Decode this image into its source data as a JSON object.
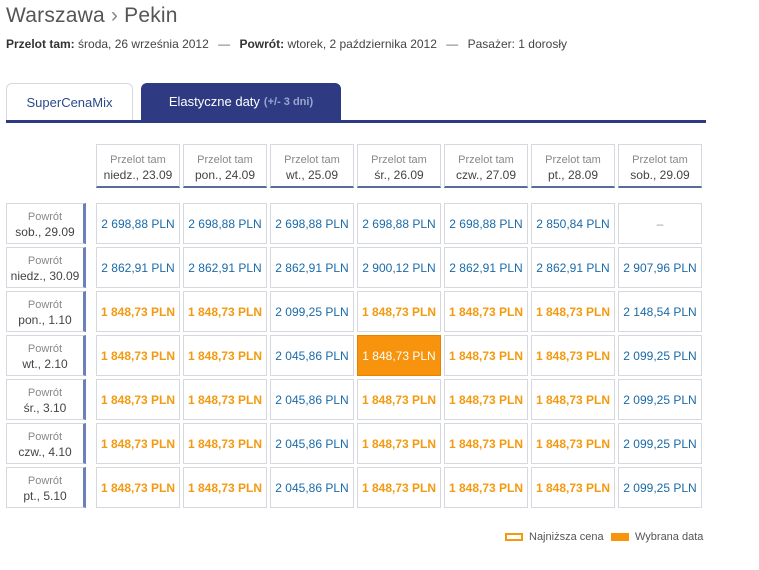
{
  "header": {
    "origin": "Warszawa",
    "separator": "›",
    "destination": "Pekin",
    "outbound_label": "Przelot tam:",
    "outbound_date": "środa, 26 września 2012",
    "return_label": "Powrót:",
    "return_date": "wtorek, 2 października 2012",
    "passenger_label": "Pasażer:",
    "passenger_value": "1 dorosły",
    "dash": "—"
  },
  "tabs": {
    "super_label": "SuperCenaMix",
    "elastic_label": "Elastyczne daty",
    "elastic_hint": "(+/- 3 dni)"
  },
  "columns_label": "Przelot tam",
  "rows_label": "Powrót",
  "columns": [
    "niedz., 23.09",
    "pon., 24.09",
    "wt., 25.09",
    "śr., 26.09",
    "czw., 27.09",
    "pt., 28.09",
    "sob., 29.09"
  ],
  "rows": [
    "sob., 29.09",
    "niedz., 30.09",
    "pon., 1.10",
    "wt., 2.10",
    "śr., 3.10",
    "czw., 4.10",
    "pt., 5.10"
  ],
  "prices": [
    [
      "2 698,88 PLN",
      "2 698,88 PLN",
      "2 698,88 PLN",
      "2 698,88 PLN",
      "2 698,88 PLN",
      "2 850,84 PLN",
      "–"
    ],
    [
      "2 862,91 PLN",
      "2 862,91 PLN",
      "2 862,91 PLN",
      "2 900,12 PLN",
      "2 862,91 PLN",
      "2 862,91 PLN",
      "2 907,96 PLN"
    ],
    [
      "1 848,73 PLN",
      "1 848,73 PLN",
      "2 099,25 PLN",
      "1 848,73 PLN",
      "1 848,73 PLN",
      "1 848,73 PLN",
      "2 148,54 PLN"
    ],
    [
      "1 848,73 PLN",
      "1 848,73 PLN",
      "2 045,86 PLN",
      "1 848,73 PLN",
      "1 848,73 PLN",
      "1 848,73 PLN",
      "2 099,25 PLN"
    ],
    [
      "1 848,73 PLN",
      "1 848,73 PLN",
      "2 045,86 PLN",
      "1 848,73 PLN",
      "1 848,73 PLN",
      "1 848,73 PLN",
      "2 099,25 PLN"
    ],
    [
      "1 848,73 PLN",
      "1 848,73 PLN",
      "2 045,86 PLN",
      "1 848,73 PLN",
      "1 848,73 PLN",
      "1 848,73 PLN",
      "2 099,25 PLN"
    ],
    [
      "1 848,73 PLN",
      "1 848,73 PLN",
      "2 045,86 PLN",
      "1 848,73 PLN",
      "1 848,73 PLN",
      "1 848,73 PLN",
      "2 099,25 PLN"
    ]
  ],
  "cheapest_price": "1 848,73 PLN",
  "selected": {
    "row": 3,
    "col": 3
  },
  "legend": {
    "lowest_label": "Najniższa cena",
    "selected_label": "Wybrana data"
  },
  "colors": {
    "accent_navy": "#2e3a82",
    "cheapest_orange": "#f39a10",
    "selected_orange": "#f7930c",
    "price_blue": "#1a6aa8"
  }
}
